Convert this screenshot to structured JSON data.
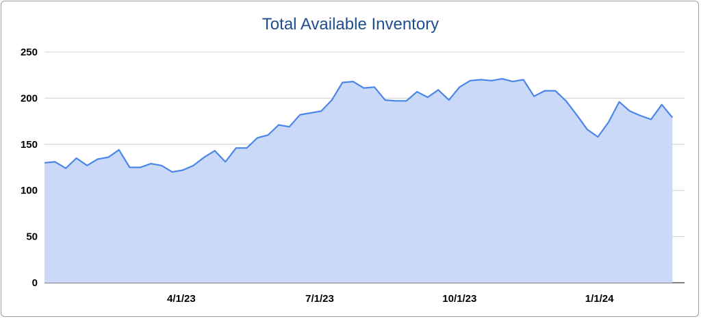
{
  "chart_data": {
    "type": "area",
    "title": "Total Available Inventory",
    "xlabel": "",
    "ylabel": "",
    "ylim": [
      0,
      250
    ],
    "yticks": [
      "0",
      "50",
      "100",
      "150",
      "200",
      "250"
    ],
    "xlim": [
      "2023-01-01",
      "2024-02-26"
    ],
    "xticks": [
      {
        "label": "4/1/23",
        "date": "2023-04-01"
      },
      {
        "label": "7/1/23",
        "date": "2023-07-01"
      },
      {
        "label": "10/1/23",
        "date": "2023-10-01"
      },
      {
        "label": "1/1/24",
        "date": "2024-01-01"
      }
    ],
    "grid": true,
    "legend": "none",
    "series": [
      {
        "color": "#4a86e8",
        "fill": "#c9d9f7",
        "x": [
          "2023-01-01",
          "2023-01-08",
          "2023-01-15",
          "2023-01-22",
          "2023-01-29",
          "2023-02-05",
          "2023-02-12",
          "2023-02-19",
          "2023-02-26",
          "2023-03-05",
          "2023-03-12",
          "2023-03-19",
          "2023-03-26",
          "2023-04-02",
          "2023-04-09",
          "2023-04-16",
          "2023-04-23",
          "2023-04-30",
          "2023-05-07",
          "2023-05-14",
          "2023-05-21",
          "2023-05-28",
          "2023-06-04",
          "2023-06-11",
          "2023-06-18",
          "2023-06-25",
          "2023-07-02",
          "2023-07-09",
          "2023-07-16",
          "2023-07-23",
          "2023-07-30",
          "2023-08-06",
          "2023-08-13",
          "2023-08-20",
          "2023-08-27",
          "2023-09-03",
          "2023-09-10",
          "2023-09-17",
          "2023-09-24",
          "2023-10-01",
          "2023-10-08",
          "2023-10-15",
          "2023-10-22",
          "2023-10-29",
          "2023-11-05",
          "2023-11-12",
          "2023-11-19",
          "2023-11-26",
          "2023-12-03",
          "2023-12-10",
          "2023-12-17",
          "2023-12-24",
          "2023-12-31",
          "2024-01-07",
          "2024-01-14",
          "2024-01-21",
          "2024-01-28",
          "2024-02-04",
          "2024-02-11",
          "2024-02-18"
        ],
        "values": [
          130,
          131,
          124,
          135,
          127,
          134,
          136,
          144,
          125,
          125,
          129,
          127,
          120,
          122,
          127,
          136,
          143,
          131,
          146,
          146,
          157,
          160,
          171,
          169,
          182,
          184,
          186,
          198,
          217,
          218,
          211,
          212,
          198,
          197,
          197,
          207,
          201,
          209,
          198,
          212,
          219,
          220,
          219,
          221,
          218,
          220,
          202,
          208,
          208,
          197,
          182,
          166,
          158,
          174,
          196,
          186,
          181,
          177,
          193,
          179
        ]
      }
    ]
  }
}
